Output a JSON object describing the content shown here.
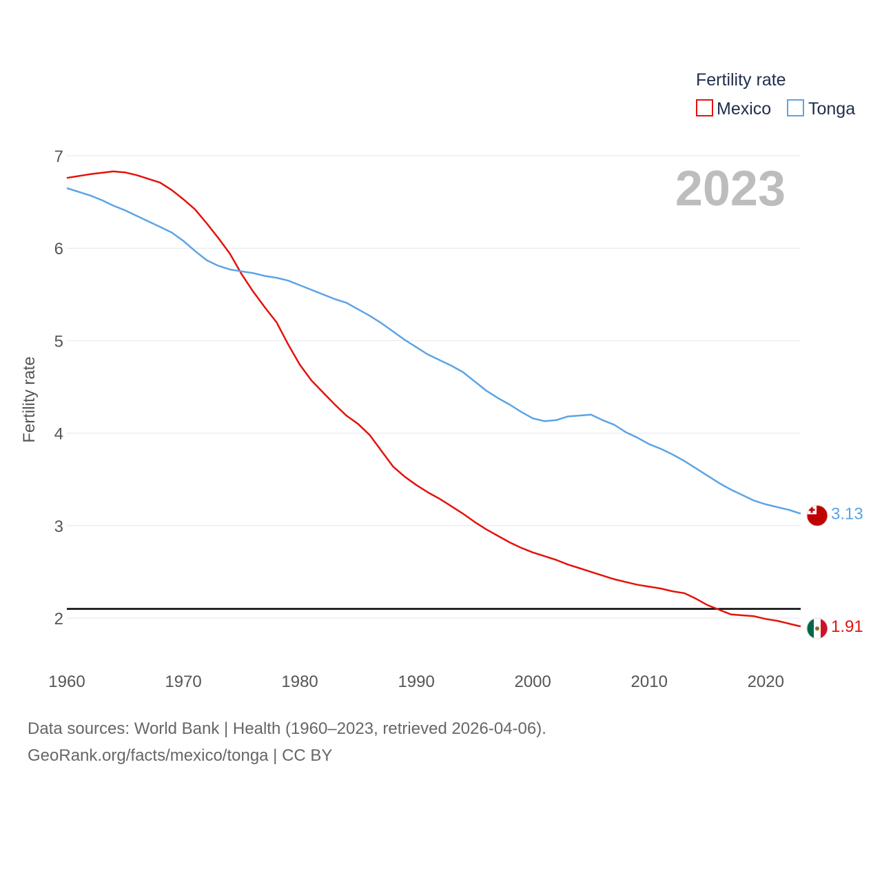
{
  "chart_data": {
    "type": "line",
    "title": "",
    "xlabel": "",
    "ylabel": "Fertility rate",
    "xlim": [
      1960,
      2023
    ],
    "ylim": [
      1.5,
      7
    ],
    "x_ticks": [
      1960,
      1970,
      1980,
      1990,
      2000,
      2010,
      2020
    ],
    "y_ticks": [
      2,
      3,
      4,
      5,
      6,
      7
    ],
    "year_label": "2023",
    "legend": {
      "title": "Fertility rate",
      "position": "top-right"
    },
    "reference_line": {
      "y": 2.1,
      "color": "#000000"
    },
    "series": [
      {
        "name": "Mexico",
        "color": "#e3120b",
        "end_label": "1.91",
        "flag_icon": "mexico-flag-icon",
        "points": [
          [
            1960,
            6.76
          ],
          [
            1962,
            6.8
          ],
          [
            1964,
            6.83
          ],
          [
            1965,
            6.82
          ],
          [
            1966,
            6.79
          ],
          [
            1968,
            6.71
          ],
          [
            1969,
            6.63
          ],
          [
            1970,
            6.53
          ],
          [
            1971,
            6.42
          ],
          [
            1972,
            6.27
          ],
          [
            1973,
            6.11
          ],
          [
            1974,
            5.94
          ],
          [
            1975,
            5.72
          ],
          [
            1976,
            5.53
          ],
          [
            1977,
            5.36
          ],
          [
            1978,
            5.2
          ],
          [
            1979,
            4.96
          ],
          [
            1980,
            4.74
          ],
          [
            1981,
            4.57
          ],
          [
            1982,
            4.44
          ],
          [
            1983,
            4.31
          ],
          [
            1984,
            4.19
          ],
          [
            1985,
            4.1
          ],
          [
            1986,
            3.98
          ],
          [
            1987,
            3.81
          ],
          [
            1988,
            3.64
          ],
          [
            1989,
            3.53
          ],
          [
            1990,
            3.44
          ],
          [
            1991,
            3.36
          ],
          [
            1992,
            3.29
          ],
          [
            1993,
            3.21
          ],
          [
            1994,
            3.13
          ],
          [
            1995,
            3.04
          ],
          [
            1996,
            2.96
          ],
          [
            1997,
            2.89
          ],
          [
            1998,
            2.82
          ],
          [
            1999,
            2.76
          ],
          [
            2000,
            2.71
          ],
          [
            2001,
            2.67
          ],
          [
            2002,
            2.63
          ],
          [
            2003,
            2.58
          ],
          [
            2004,
            2.54
          ],
          [
            2005,
            2.5
          ],
          [
            2006,
            2.46
          ],
          [
            2007,
            2.42
          ],
          [
            2008,
            2.39
          ],
          [
            2009,
            2.36
          ],
          [
            2010,
            2.34
          ],
          [
            2011,
            2.32
          ],
          [
            2012,
            2.29
          ],
          [
            2013,
            2.27
          ],
          [
            2014,
            2.21
          ],
          [
            2015,
            2.14
          ],
          [
            2016,
            2.09
          ],
          [
            2017,
            2.04
          ],
          [
            2018,
            2.03
          ],
          [
            2019,
            2.02
          ],
          [
            2020,
            1.99
          ],
          [
            2021,
            1.97
          ],
          [
            2022,
            1.94
          ],
          [
            2023,
            1.91
          ]
        ]
      },
      {
        "name": "Tonga",
        "color": "#5ba4e5",
        "end_label": "3.13",
        "flag_icon": "tonga-flag-icon",
        "points": [
          [
            1960,
            6.65
          ],
          [
            1962,
            6.57
          ],
          [
            1963,
            6.52
          ],
          [
            1964,
            6.46
          ],
          [
            1965,
            6.41
          ],
          [
            1966,
            6.35
          ],
          [
            1967,
            6.29
          ],
          [
            1968,
            6.23
          ],
          [
            1969,
            6.17
          ],
          [
            1970,
            6.08
          ],
          [
            1971,
            5.97
          ],
          [
            1972,
            5.87
          ],
          [
            1973,
            5.81
          ],
          [
            1974,
            5.77
          ],
          [
            1975,
            5.75
          ],
          [
            1976,
            5.73
          ],
          [
            1977,
            5.7
          ],
          [
            1978,
            5.68
          ],
          [
            1979,
            5.65
          ],
          [
            1980,
            5.6
          ],
          [
            1981,
            5.55
          ],
          [
            1982,
            5.5
          ],
          [
            1983,
            5.45
          ],
          [
            1984,
            5.41
          ],
          [
            1985,
            5.34
          ],
          [
            1986,
            5.27
          ],
          [
            1987,
            5.19
          ],
          [
            1988,
            5.1
          ],
          [
            1989,
            5.01
          ],
          [
            1990,
            4.93
          ],
          [
            1991,
            4.85
          ],
          [
            1992,
            4.79
          ],
          [
            1993,
            4.73
          ],
          [
            1994,
            4.66
          ],
          [
            1995,
            4.56
          ],
          [
            1996,
            4.46
          ],
          [
            1997,
            4.38
          ],
          [
            1998,
            4.31
          ],
          [
            1999,
            4.23
          ],
          [
            2000,
            4.16
          ],
          [
            2001,
            4.13
          ],
          [
            2002,
            4.14
          ],
          [
            2003,
            4.18
          ],
          [
            2004,
            4.19
          ],
          [
            2005,
            4.2
          ],
          [
            2006,
            4.14
          ],
          [
            2007,
            4.09
          ],
          [
            2008,
            4.01
          ],
          [
            2009,
            3.95
          ],
          [
            2010,
            3.88
          ],
          [
            2011,
            3.83
          ],
          [
            2012,
            3.77
          ],
          [
            2013,
            3.7
          ],
          [
            2014,
            3.62
          ],
          [
            2015,
            3.54
          ],
          [
            2016,
            3.46
          ],
          [
            2017,
            3.39
          ],
          [
            2018,
            3.33
          ],
          [
            2019,
            3.27
          ],
          [
            2020,
            3.23
          ],
          [
            2021,
            3.2
          ],
          [
            2022,
            3.17
          ],
          [
            2023,
            3.13
          ]
        ]
      }
    ]
  },
  "footer": {
    "source": "Data sources: World Bank | Health (1960–2023, retrieved 2026-04-06).",
    "link": "GeoRank.org/facts/mexico/tonga | CC BY"
  }
}
